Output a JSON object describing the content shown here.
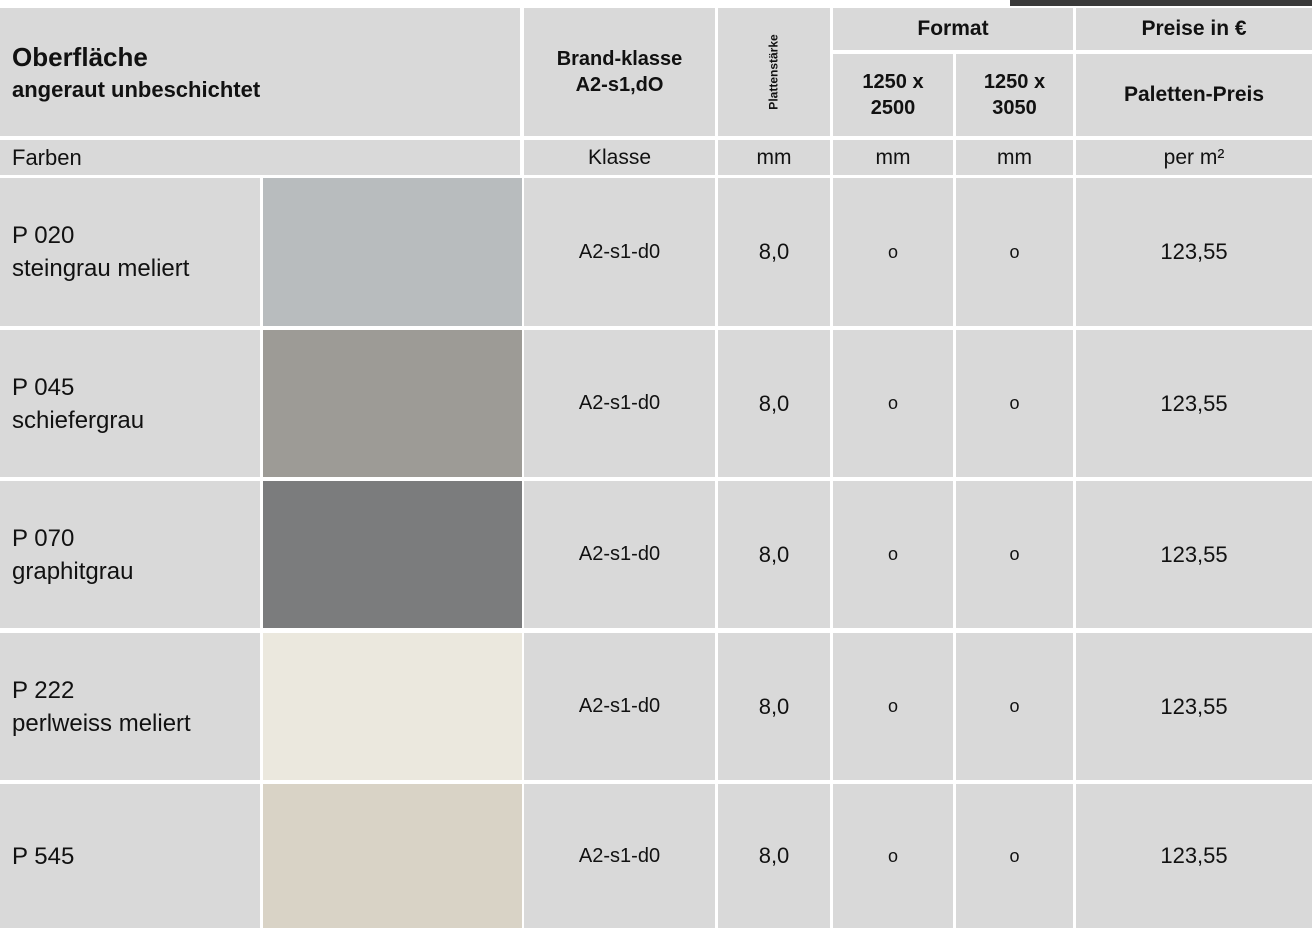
{
  "header": {
    "title": "Oberfläche",
    "subtitle": "angeraut unbeschichtet",
    "brand_class": [
      "Brand-klasse",
      "A2-s1,dO"
    ],
    "thickness": "Plattenstärke",
    "format": "Format",
    "format_sizes": [
      [
        "1250 x",
        "2500"
      ],
      [
        "1250 x",
        "3050"
      ]
    ],
    "prices": "Preise in €",
    "pallet_price": "Paletten-Preis"
  },
  "units": {
    "colors": "Farben",
    "class": "Klasse",
    "thickness": "mm",
    "format_1": "mm",
    "format_2": "mm",
    "price": "per m²"
  },
  "rows": [
    {
      "code": "P 020",
      "name": "steingrau meliert",
      "class": "A2-s1-d0",
      "thickness": "8,0",
      "format_1": "o",
      "format_2": "o",
      "price": "123,55"
    },
    {
      "code": "P 045",
      "name": "schiefergrau",
      "class": "A2-s1-d0",
      "thickness": "8,0",
      "format_1": "o",
      "format_2": "o",
      "price": "123,55"
    },
    {
      "code": "P 070",
      "name": "graphitgrau",
      "class": "A2-s1-d0",
      "thickness": "8,0",
      "format_1": "o",
      "format_2": "o",
      "price": "123,55"
    },
    {
      "code": "P 222",
      "name": "perlweiss meliert",
      "class": "A2-s1-d0",
      "thickness": "8,0",
      "format_1": "o",
      "format_2": "o",
      "price": "123,55"
    },
    {
      "code": "P 545",
      "class": "A2-s1-d0",
      "thickness": "8,0",
      "format_1": "o",
      "format_2": "o",
      "price": "123,55"
    }
  ]
}
